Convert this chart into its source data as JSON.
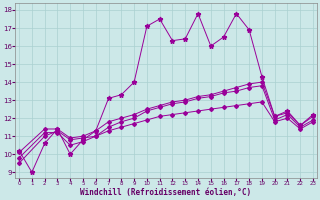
{
  "xlabel": "Windchill (Refroidissement éolien,°C)",
  "bg_color": "#cce8e8",
  "grid_color": "#aad0d0",
  "line_color": "#990099",
  "x_ticks": [
    0,
    1,
    2,
    3,
    4,
    5,
    6,
    7,
    8,
    9,
    10,
    11,
    12,
    13,
    14,
    15,
    16,
    17,
    18,
    19,
    20,
    21,
    22,
    23
  ],
  "y_ticks": [
    9,
    10,
    11,
    12,
    13,
    14,
    15,
    16,
    17,
    18
  ],
  "xlim": [
    -0.3,
    23.3
  ],
  "ylim": [
    8.7,
    18.4
  ],
  "series": [
    {
      "x": [
        0,
        1,
        2,
        3,
        4,
        5,
        6,
        7,
        8,
        9,
        10,
        11,
        12,
        13,
        14,
        15,
        16,
        17,
        18,
        19,
        20,
        21,
        22,
        23
      ],
      "y": [
        10.2,
        9.0,
        10.6,
        11.4,
        10.0,
        10.8,
        11.3,
        13.1,
        13.3,
        14.0,
        17.1,
        17.5,
        16.3,
        16.4,
        17.8,
        16.0,
        16.5,
        17.8,
        16.9,
        14.3,
        12.1,
        12.4,
        11.6,
        12.2
      ],
      "marker": "*",
      "markersize": 3.5
    },
    {
      "x": [
        0,
        2,
        3,
        4,
        5,
        6,
        7,
        8,
        9,
        10,
        11,
        12,
        13,
        14,
        15,
        16,
        17,
        18,
        19,
        20,
        21,
        22,
        23
      ],
      "y": [
        10.1,
        11.4,
        11.4,
        10.9,
        11.0,
        11.3,
        11.8,
        12.0,
        12.2,
        12.5,
        12.7,
        12.9,
        13.0,
        13.2,
        13.3,
        13.5,
        13.7,
        13.9,
        14.0,
        12.1,
        12.3,
        11.6,
        12.1
      ],
      "marker": "D",
      "markersize": 2.0
    },
    {
      "x": [
        0,
        2,
        3,
        4,
        5,
        6,
        7,
        8,
        9,
        10,
        11,
        12,
        13,
        14,
        15,
        16,
        17,
        18,
        19,
        20,
        21,
        22,
        23
      ],
      "y": [
        9.5,
        11.0,
        11.3,
        10.8,
        10.9,
        11.0,
        11.3,
        11.5,
        11.7,
        11.9,
        12.1,
        12.2,
        12.3,
        12.4,
        12.5,
        12.6,
        12.7,
        12.8,
        12.9,
        11.8,
        12.0,
        11.4,
        11.8
      ],
      "marker": "D",
      "markersize": 2.0
    },
    {
      "x": [
        0,
        2,
        3,
        4,
        5,
        6,
        7,
        8,
        9,
        10,
        11,
        12,
        13,
        14,
        15,
        16,
        17,
        18,
        19,
        20,
        21,
        22,
        23
      ],
      "y": [
        9.8,
        11.2,
        11.2,
        10.5,
        10.7,
        11.0,
        11.5,
        11.8,
        12.0,
        12.4,
        12.6,
        12.8,
        12.9,
        13.1,
        13.2,
        13.4,
        13.5,
        13.7,
        13.8,
        11.9,
        12.2,
        11.5,
        11.9
      ],
      "marker": "D",
      "markersize": 2.0
    }
  ]
}
